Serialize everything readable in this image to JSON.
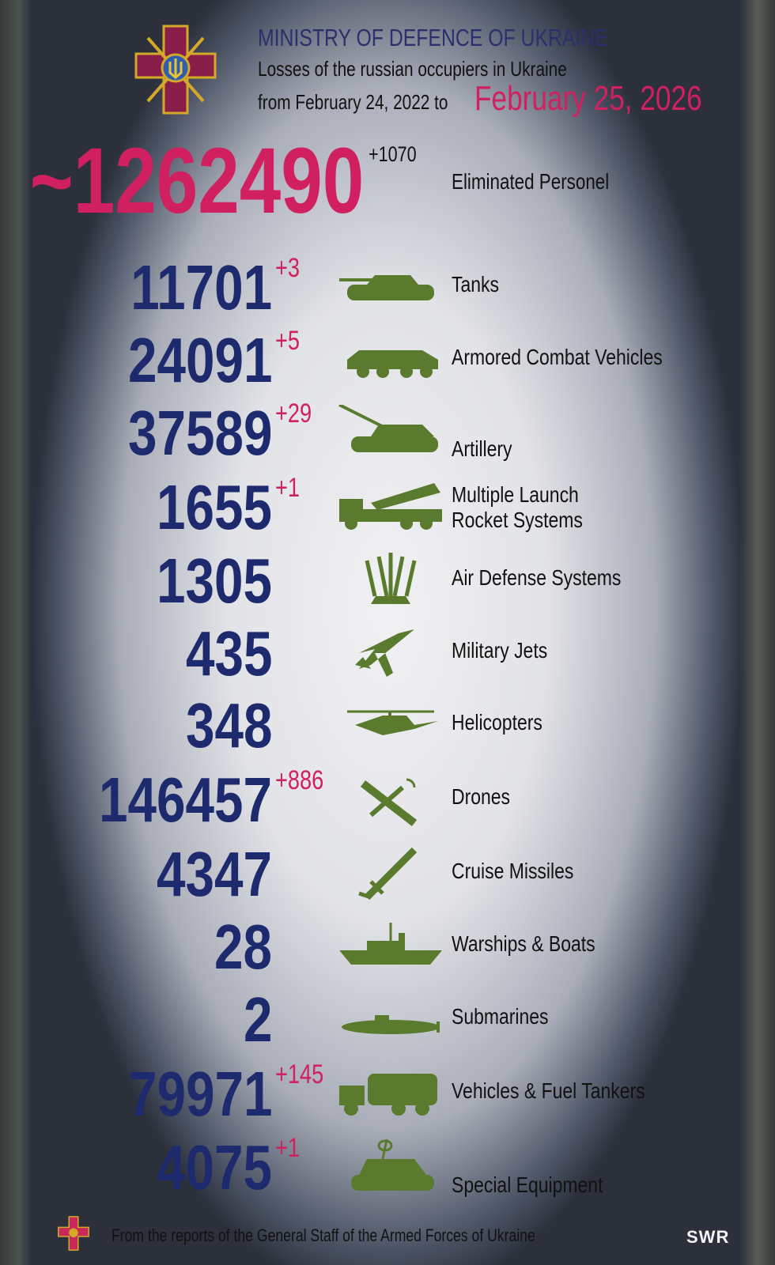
{
  "header": {
    "title": "MINISTRY OF DEFENCE OF UKRAINE",
    "subtitle": "Losses of the russian occupiers in Ukraine",
    "period_prefix": "from February 24, 2022 to",
    "date": "February 25, 2026"
  },
  "personnel": {
    "value": "~1262490",
    "delta": "+1070",
    "label": "Eliminated Personel"
  },
  "items": [
    {
      "value": "11701",
      "delta": "+3",
      "label": "Tanks",
      "icon": "tank-icon"
    },
    {
      "value": "24091",
      "delta": "+5",
      "label": "Armored Combat Vehicles",
      "icon": "armored-vehicle-icon"
    },
    {
      "value": "37589",
      "delta": "+29",
      "label": "Artillery",
      "icon": "artillery-icon"
    },
    {
      "value": "1655",
      "delta": "+1",
      "label": "Multiple Launch Rocket Systems",
      "icon": "rocket-launcher-icon"
    },
    {
      "value": "1305",
      "delta": "",
      "label": "Air Defense Systems",
      "icon": "air-defense-icon"
    },
    {
      "value": "435",
      "delta": "",
      "label": "Military Jets",
      "icon": "jet-icon"
    },
    {
      "value": "348",
      "delta": "",
      "label": "Helicopters",
      "icon": "helicopter-icon"
    },
    {
      "value": "146457",
      "delta": "+886",
      "label": "Drones",
      "icon": "drone-icon"
    },
    {
      "value": "4347",
      "delta": "",
      "label": "Cruise Missiles",
      "icon": "missile-icon"
    },
    {
      "value": "28",
      "delta": "",
      "label": "Warships & Boats",
      "icon": "warship-icon"
    },
    {
      "value": "2",
      "delta": "",
      "label": "Submarines",
      "icon": "submarine-icon"
    },
    {
      "value": "79971",
      "delta": "+145",
      "label": "Vehicles & Fuel Tankers",
      "icon": "truck-icon"
    },
    {
      "value": "4075",
      "delta": "+1",
      "label": "Special Equipment",
      "icon": "special-equipment-icon"
    }
  ],
  "footer": {
    "source": "From the reports of the General Staff of the Armed Forces of Ukraine",
    "brand": "SWR"
  },
  "colors": {
    "accent": "#d1205f",
    "numbers": "#1e2a6e",
    "icons": "#5a7a2e"
  }
}
